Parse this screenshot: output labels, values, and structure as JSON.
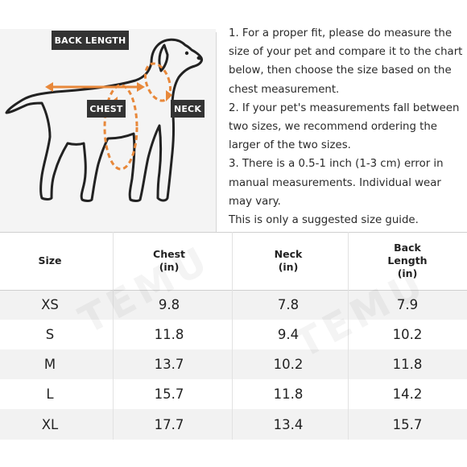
{
  "illustration": {
    "back_length_label": "BACK LENGTH",
    "chest_label": "CHEST",
    "neck_label": "NECK",
    "accent_color": "#e8883a",
    "label_bg_color": "#333333"
  },
  "notes": [
    "1. For a proper fit, please do measure the",
    "size of your pet and compare it to the chart",
    "below, then choose the size based on the",
    "chest measurement.",
    "2. If your pet's measurements fall between",
    "two sizes, we recommend ordering the",
    "larger of the two sizes.",
    "3. There is a 0.5-1 inch (1-3 cm) error in",
    "manual measurements. Individual wear",
    "may vary.",
    "This is only a suggested size guide."
  ],
  "table": {
    "headers": [
      [
        "Size"
      ],
      [
        "Chest",
        "(in)"
      ],
      [
        "Neck",
        "(in)"
      ],
      [
        "Back",
        "Length",
        "(in)"
      ]
    ],
    "rows": [
      [
        "XS",
        "9.8",
        "7.8",
        "7.9"
      ],
      [
        "S",
        "11.8",
        "9.4",
        "10.2"
      ],
      [
        "M",
        "13.7",
        "10.2",
        "11.8"
      ],
      [
        "L",
        "15.7",
        "11.8",
        "14.2"
      ],
      [
        "XL",
        "17.7",
        "13.4",
        "15.7"
      ]
    ]
  },
  "watermark": "TEMU"
}
